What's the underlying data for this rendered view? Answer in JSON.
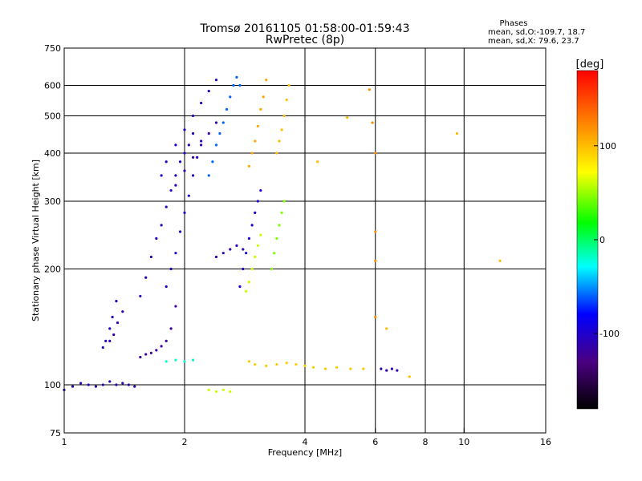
{
  "chart_data": {
    "type": "scatter",
    "title": "Tromsø 20161105 01:58:00-01:59:43",
    "subtitle": "RwPretec (8p)",
    "xlabel": "Frequency [MHz]",
    "ylabel": "Stationary phase Virtual Height [km]",
    "xscale": "log",
    "yscale": "log",
    "xlim": [
      1,
      16
    ],
    "ylim": [
      75,
      750
    ],
    "x_ticks": [
      1,
      2,
      4,
      6,
      8,
      10,
      16
    ],
    "x_tick_labels": [
      "1",
      "2",
      "4",
      "6",
      "8",
      "10",
      "16"
    ],
    "y_ticks": [
      75,
      100,
      200,
      300,
      400,
      500,
      600,
      750
    ],
    "y_tick_labels": [
      "75",
      "100",
      "200",
      "300",
      "400",
      "500",
      "600",
      "750"
    ],
    "x_gridlines": [
      2,
      4,
      6,
      8,
      10
    ],
    "y_gridlines": [
      100,
      200,
      300,
      400,
      500,
      600
    ],
    "grid": true,
    "info_box": {
      "heading": "Phases",
      "line1": "mean, sd,O:-109.7, 18.7",
      "line2": "mean, sd,X:  79.6, 23.7"
    },
    "colorbar": {
      "label": "[deg]",
      "range": [
        -180,
        180
      ],
      "ticks": [
        100,
        0,
        -100
      ],
      "tick_labels": [
        "100",
        "0",
        "-100"
      ],
      "colors": [
        "#000000",
        "#4b0082",
        "#0000ff",
        "#00ffff",
        "#00ff00",
        "#ffff00",
        "#ff8000",
        "#ff0000"
      ]
    },
    "series": [
      {
        "x": [
          1.0,
          1.05,
          1.1,
          1.15,
          1.2,
          1.25,
          1.3,
          1.35,
          1.4,
          1.45,
          1.5
        ],
        "y": [
          97,
          99,
          101,
          100,
          99,
          100,
          102,
          100,
          101,
          100,
          99
        ],
        "phase": -110
      },
      {
        "x": [
          1.25,
          1.27,
          1.3,
          1.32,
          1.35
        ],
        "y": [
          125,
          130,
          140,
          150,
          165
        ],
        "phase": -105
      },
      {
        "x": [
          1.3,
          1.33,
          1.36,
          1.4
        ],
        "y": [
          130,
          135,
          145,
          155
        ],
        "phase": -112
      },
      {
        "x": [
          1.55,
          1.6,
          1.65,
          1.7,
          1.75,
          1.8,
          1.85,
          1.9
        ],
        "y": [
          118,
          120,
          121,
          123,
          126,
          130,
          140,
          160
        ],
        "phase": -120
      },
      {
        "x": [
          1.55,
          1.6,
          1.65,
          1.7,
          1.75,
          1.8,
          1.85,
          1.9,
          1.95,
          2.0,
          2.05,
          2.1
        ],
        "y": [
          170,
          190,
          215,
          240,
          260,
          290,
          320,
          350,
          380,
          400,
          420,
          450
        ],
        "phase": -108
      },
      {
        "x": [
          1.8,
          1.85,
          1.9,
          1.95,
          2.0,
          2.05,
          2.1,
          2.15,
          2.2
        ],
        "y": [
          180,
          200,
          220,
          250,
          280,
          310,
          350,
          390,
          430
        ],
        "phase": -100
      },
      {
        "x": [
          1.75,
          1.8,
          1.9,
          2.0,
          2.1,
          2.2,
          2.3,
          2.4
        ],
        "y": [
          350,
          380,
          420,
          460,
          500,
          540,
          580,
          620
        ],
        "phase": -105
      },
      {
        "x": [
          1.9,
          2.0,
          2.1,
          2.2,
          2.3,
          2.4
        ],
        "y": [
          330,
          360,
          390,
          420,
          450,
          480
        ],
        "phase": -115
      },
      {
        "x": [
          2.3,
          2.35,
          2.4,
          2.45,
          2.5,
          2.55,
          2.6,
          2.65,
          2.7,
          2.75
        ],
        "y": [
          350,
          380,
          420,
          450,
          480,
          520,
          560,
          600,
          630,
          600
        ],
        "phase": -60
      },
      {
        "x": [
          2.4,
          2.5,
          2.6,
          2.7,
          2.8
        ],
        "y": [
          215,
          220,
          225,
          230,
          225
        ],
        "phase": -110
      },
      {
        "x": [
          2.75,
          2.8,
          2.85,
          2.9,
          2.95,
          3.0,
          3.05,
          3.1
        ],
        "y": [
          180,
          200,
          220,
          240,
          260,
          280,
          300,
          320
        ],
        "phase": -95
      },
      {
        "x": [
          2.9,
          2.95,
          3.0,
          3.05,
          3.1,
          3.15,
          3.2
        ],
        "y": [
          370,
          400,
          430,
          470,
          520,
          560,
          620
        ],
        "phase": 110
      },
      {
        "x": [
          2.85,
          2.9,
          2.95,
          3.0,
          3.05,
          3.1
        ],
        "y": [
          175,
          185,
          200,
          215,
          230,
          245
        ],
        "phase": 60
      },
      {
        "x": [
          3.3,
          3.35,
          3.4,
          3.45,
          3.5,
          3.55
        ],
        "y": [
          200,
          220,
          240,
          260,
          280,
          300
        ],
        "phase": 45
      },
      {
        "x": [
          3.4,
          3.45,
          3.5,
          3.55,
          3.6,
          3.65
        ],
        "y": [
          400,
          430,
          460,
          500,
          550,
          600
        ],
        "phase": 100
      },
      {
        "x": [
          2.9,
          3.0,
          3.2,
          3.4,
          3.6,
          3.8,
          4.0,
          4.2,
          4.5,
          4.8,
          5.2,
          5.6
        ],
        "y": [
          115,
          113,
          112,
          113,
          114,
          113,
          112,
          111,
          110,
          111,
          110,
          110
        ],
        "phase": 95
      },
      {
        "x": [
          2.3,
          2.4,
          2.5,
          2.6
        ],
        "y": [
          97,
          96,
          97,
          96
        ],
        "phase": 60
      },
      {
        "x": [
          1.8,
          1.9,
          2.0,
          2.1
        ],
        "y": [
          115,
          116,
          115,
          116
        ],
        "phase": -20
      },
      {
        "x": [
          6.2,
          6.4,
          6.6,
          6.8
        ],
        "y": [
          110,
          109,
          110,
          109
        ],
        "phase": -110
      },
      {
        "x": [
          5.8,
          5.9,
          6.0,
          6.0,
          6.0,
          6.0
        ],
        "y": [
          585,
          480,
          400,
          250,
          210,
          150
        ],
        "phase": 120
      },
      {
        "x": [
          4.3,
          5.1,
          9.6,
          12.3,
          6.4,
          7.3
        ],
        "y": [
          380,
          495,
          450,
          210,
          140,
          105
        ],
        "phase": 100
      }
    ]
  }
}
